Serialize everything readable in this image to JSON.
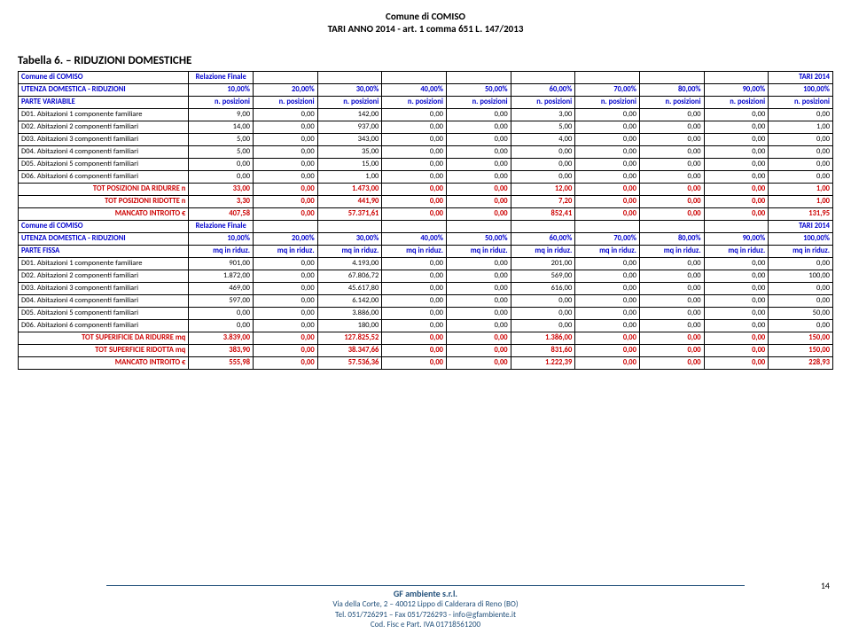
{
  "header": {
    "line1": "Comune di COMISO",
    "line2": "TARI ANNO 2014 - art. 1 comma 651 L. 147/2013"
  },
  "table_title": "Tabella 6. – RIDUZIONI DOMESTICHE",
  "page_num": "14",
  "footer": {
    "company": "GF ambiente s.r.l.",
    "addr": "Via della Corte, 2 – 40012 Lippo di Calderara di Reno (BO)",
    "tel": "Tel. 051/726291 – Fax 051/726293 - info@gfambiente.it",
    "cod": "Cod. Fisc e Part. IVA 01718561200"
  },
  "percents": [
    "10,00%",
    "20,00%",
    "30,00%",
    "40,00%",
    "50,00%",
    "60,00%",
    "70,00%",
    "80,00%",
    "90,00%",
    "100,00%"
  ],
  "posizioni_label": "n. posizioni",
  "mq_label": "mq in riduz.",
  "sec1": {
    "h1": "Comune di COMISO",
    "h2": "Relazione Finale",
    "h3": "TARI 2014",
    "r1": "UTENZA DOMESTICA - RIDUZIONI",
    "r2": "PARTE VARIABILE",
    "rows": [
      {
        "l": "D01. Abitazioni 1 componente familiare",
        "v": [
          "9,00",
          "0,00",
          "142,00",
          "0,00",
          "0,00",
          "3,00",
          "0,00",
          "0,00",
          "0,00",
          "0,00"
        ]
      },
      {
        "l": "D02. Abitazioni 2 componenti familiari",
        "v": [
          "14,00",
          "0,00",
          "937,00",
          "0,00",
          "0,00",
          "5,00",
          "0,00",
          "0,00",
          "0,00",
          "1,00"
        ]
      },
      {
        "l": "D03. Abitazioni 3 componenti familiari",
        "v": [
          "5,00",
          "0,00",
          "343,00",
          "0,00",
          "0,00",
          "4,00",
          "0,00",
          "0,00",
          "0,00",
          "0,00"
        ]
      },
      {
        "l": "D04. Abitazioni 4 componenti familiari",
        "v": [
          "5,00",
          "0,00",
          "35,00",
          "0,00",
          "0,00",
          "0,00",
          "0,00",
          "0,00",
          "0,00",
          "0,00"
        ]
      },
      {
        "l": "D05. Abitazioni 5 componenti familiari",
        "v": [
          "0,00",
          "0,00",
          "15,00",
          "0,00",
          "0,00",
          "0,00",
          "0,00",
          "0,00",
          "0,00",
          "0,00"
        ]
      },
      {
        "l": "D06. Abitazioni 6 componenti familiari",
        "v": [
          "0,00",
          "0,00",
          "1,00",
          "0,00",
          "0,00",
          "0,00",
          "0,00",
          "0,00",
          "0,00",
          "0,00"
        ]
      }
    ],
    "totals": [
      {
        "l": "TOT POSIZIONI DA RIDURRE n",
        "v": [
          "33,00",
          "0,00",
          "1.473,00",
          "0,00",
          "0,00",
          "12,00",
          "0,00",
          "0,00",
          "0,00",
          "1,00"
        ]
      },
      {
        "l": "TOT POSIZIONI RIDOTTE n",
        "v": [
          "3,30",
          "0,00",
          "441,90",
          "0,00",
          "0,00",
          "7,20",
          "0,00",
          "0,00",
          "0,00",
          "1,00"
        ]
      },
      {
        "l": "MANCATO INTROITO €",
        "v": [
          "407,58",
          "0,00",
          "57.371,61",
          "0,00",
          "0,00",
          "852,41",
          "0,00",
          "0,00",
          "0,00",
          "131,95"
        ]
      }
    ]
  },
  "sec2": {
    "h1": "Comune di COMISO",
    "h2": "Relazione Finale",
    "h3": "TARI 2014",
    "r1": "UTENZA DOMESTICA - RIDUZIONI",
    "r2": "PARTE FISSA",
    "rows": [
      {
        "l": "D01. Abitazioni 1 componente familiare",
        "v": [
          "901,00",
          "0,00",
          "4.193,00",
          "0,00",
          "0,00",
          "201,00",
          "0,00",
          "0,00",
          "0,00",
          "0,00"
        ]
      },
      {
        "l": "D02. Abitazioni 2 componenti familiari",
        "v": [
          "1.872,00",
          "0,00",
          "67.806,72",
          "0,00",
          "0,00",
          "569,00",
          "0,00",
          "0,00",
          "0,00",
          "100,00"
        ]
      },
      {
        "l": "D03. Abitazioni 3 componenti familiari",
        "v": [
          "469,00",
          "0,00",
          "45.617,80",
          "0,00",
          "0,00",
          "616,00",
          "0,00",
          "0,00",
          "0,00",
          "0,00"
        ]
      },
      {
        "l": "D04. Abitazioni 4 componenti familiari",
        "v": [
          "597,00",
          "0,00",
          "6.142,00",
          "0,00",
          "0,00",
          "0,00",
          "0,00",
          "0,00",
          "0,00",
          "0,00"
        ]
      },
      {
        "l": "D05. Abitazioni 5 componenti familiari",
        "v": [
          "0,00",
          "0,00",
          "3.886,00",
          "0,00",
          "0,00",
          "0,00",
          "0,00",
          "0,00",
          "0,00",
          "50,00"
        ]
      },
      {
        "l": "D06. Abitazioni 6 componenti familiari",
        "v": [
          "0,00",
          "0,00",
          "180,00",
          "0,00",
          "0,00",
          "0,00",
          "0,00",
          "0,00",
          "0,00",
          "0,00"
        ]
      }
    ],
    "totals": [
      {
        "l": "TOT SUPERIFICIE DA RIDURRE mq",
        "v": [
          "3.839,00",
          "0,00",
          "127.825,52",
          "0,00",
          "0,00",
          "1.386,00",
          "0,00",
          "0,00",
          "0,00",
          "150,00"
        ]
      },
      {
        "l": "TOT SUPERFICIE RIDOTTA mq",
        "v": [
          "383,90",
          "0,00",
          "38.347,66",
          "0,00",
          "0,00",
          "831,60",
          "0,00",
          "0,00",
          "0,00",
          "150,00"
        ]
      },
      {
        "l": "MANCATO INTROITO €",
        "v": [
          "555,98",
          "0,00",
          "57.536,36",
          "0,00",
          "0,00",
          "1.222,39",
          "0,00",
          "0,00",
          "0,00",
          "228,93"
        ]
      }
    ]
  }
}
